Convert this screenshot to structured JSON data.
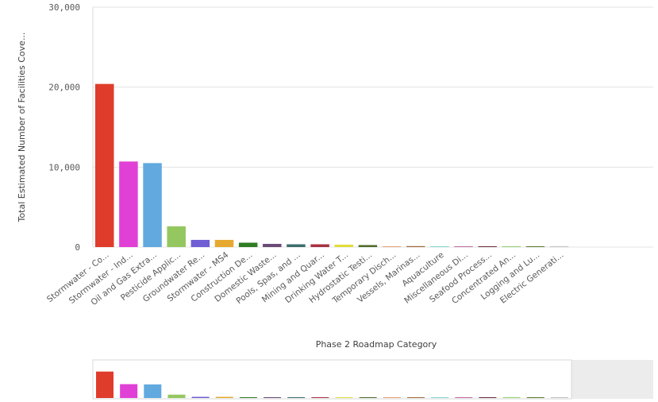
{
  "chart_data": {
    "type": "bar",
    "xlabel": "Phase 2 Roadmap Category",
    "ylabel": "Total Estimated Number of Facilities Cove...",
    "ylim": [
      0,
      30000
    ],
    "yticks": [
      0,
      10000,
      20000,
      30000
    ],
    "ytick_labels": [
      "0",
      "10,000",
      "20,000",
      "30,000"
    ],
    "grid": true,
    "legend": "none",
    "categories": [
      "Stormwater - Co...",
      "Stormwater - Ind...",
      "Oil and Gas Extra...",
      "Pesticide Applic...",
      "Groundwater Re...",
      "Stormwater - MS4",
      "Construction De...",
      "Domestic Waste...",
      "Pools, Spas, and ...",
      "Mining and Quar...",
      "Drinking Water T...",
      "Hydrostatic Testi...",
      "Temporary Disch...",
      "Vessels, Marinas...",
      "Aquaculture",
      "Miscellaneous Di...",
      "Seafood Process...",
      "Concentrated An...",
      "Logging and Lu...",
      "Electric Generati..."
    ],
    "values": [
      20400,
      10700,
      10500,
      2600,
      900,
      900,
      550,
      400,
      350,
      350,
      300,
      250,
      100,
      120,
      50,
      70,
      60,
      40,
      10,
      5
    ],
    "colors": [
      "#e03c2b",
      "#e140d6",
      "#62a9df",
      "#94c760",
      "#6f5ed4",
      "#e6a92f",
      "#2e7d22",
      "#6b4a78",
      "#3d6f6b",
      "#a83244",
      "#e0dc3a",
      "#4f6b2a",
      "#e8a070",
      "#a06a3a",
      "#7fd8d0",
      "#c06aa0",
      "#6a2a3a",
      "#8fd070",
      "#5a7a2a",
      "#c0c0c0"
    ]
  }
}
